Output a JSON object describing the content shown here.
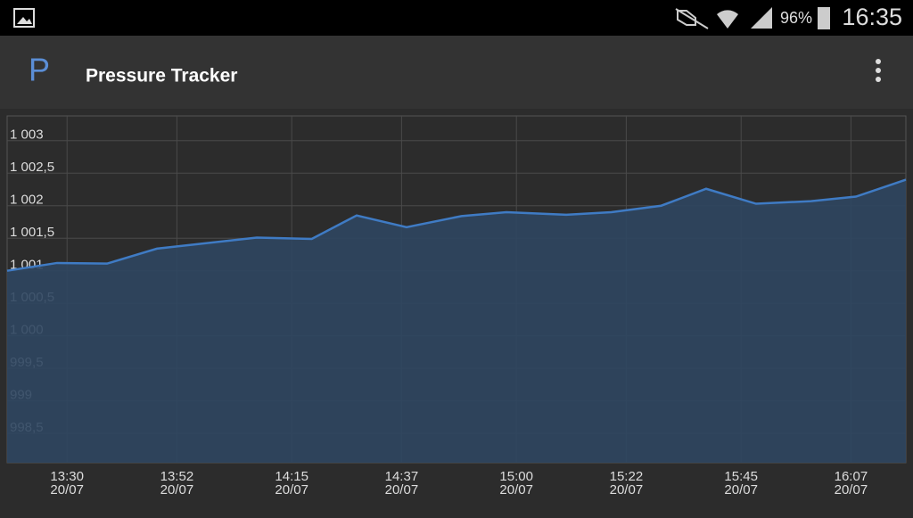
{
  "status_bar": {
    "battery": "96%",
    "time": "16:35"
  },
  "app_bar": {
    "icon": "P",
    "title": "Pressure Tracker"
  },
  "chart_data": {
    "type": "area",
    "x": [
      "13:18",
      "13:28",
      "13:38",
      "13:48",
      "14:08",
      "14:19",
      "14:28",
      "14:38",
      "14:49",
      "14:58",
      "15:10",
      "15:19",
      "15:29",
      "15:38",
      "15:48",
      "15:59",
      "16:08",
      "16:18"
    ],
    "values": [
      1001.0,
      1001.12,
      1001.11,
      1001.34,
      1001.51,
      1001.49,
      1001.85,
      1001.67,
      1001.84,
      1001.9,
      1001.86,
      1001.9,
      1002.0,
      1002.26,
      1002.03,
      1002.07,
      1002.14,
      1002.4
    ],
    "color": "#3f7bc4",
    "fill": "#2f4660",
    "xlim": [
      "13:18",
      "16:18"
    ],
    "xticks": [
      "13:30",
      "13:52",
      "14:15",
      "14:37",
      "15:00",
      "15:22",
      "15:45",
      "16:07"
    ],
    "xtick_dates": [
      "20/07",
      "20/07",
      "20/07",
      "20/07",
      "20/07",
      "20/07",
      "20/07",
      "20/07"
    ],
    "ylim": [
      998.05,
      1003.38
    ],
    "yticks": [
      {
        "value": 998.5,
        "label": "998,5"
      },
      {
        "value": 999,
        "label": "999"
      },
      {
        "value": 999.5,
        "label": "999,5"
      },
      {
        "value": 1000,
        "label": "1 000"
      },
      {
        "value": 1000.5,
        "label": "1 000,5"
      },
      {
        "value": 1001,
        "label": "1 001"
      },
      {
        "value": 1001.5,
        "label": "1 001,5"
      },
      {
        "value": 1002,
        "label": "1 002"
      },
      {
        "value": 1002.5,
        "label": "1 002,5"
      },
      {
        "value": 1003,
        "label": "1 003"
      }
    ],
    "grid": true
  }
}
